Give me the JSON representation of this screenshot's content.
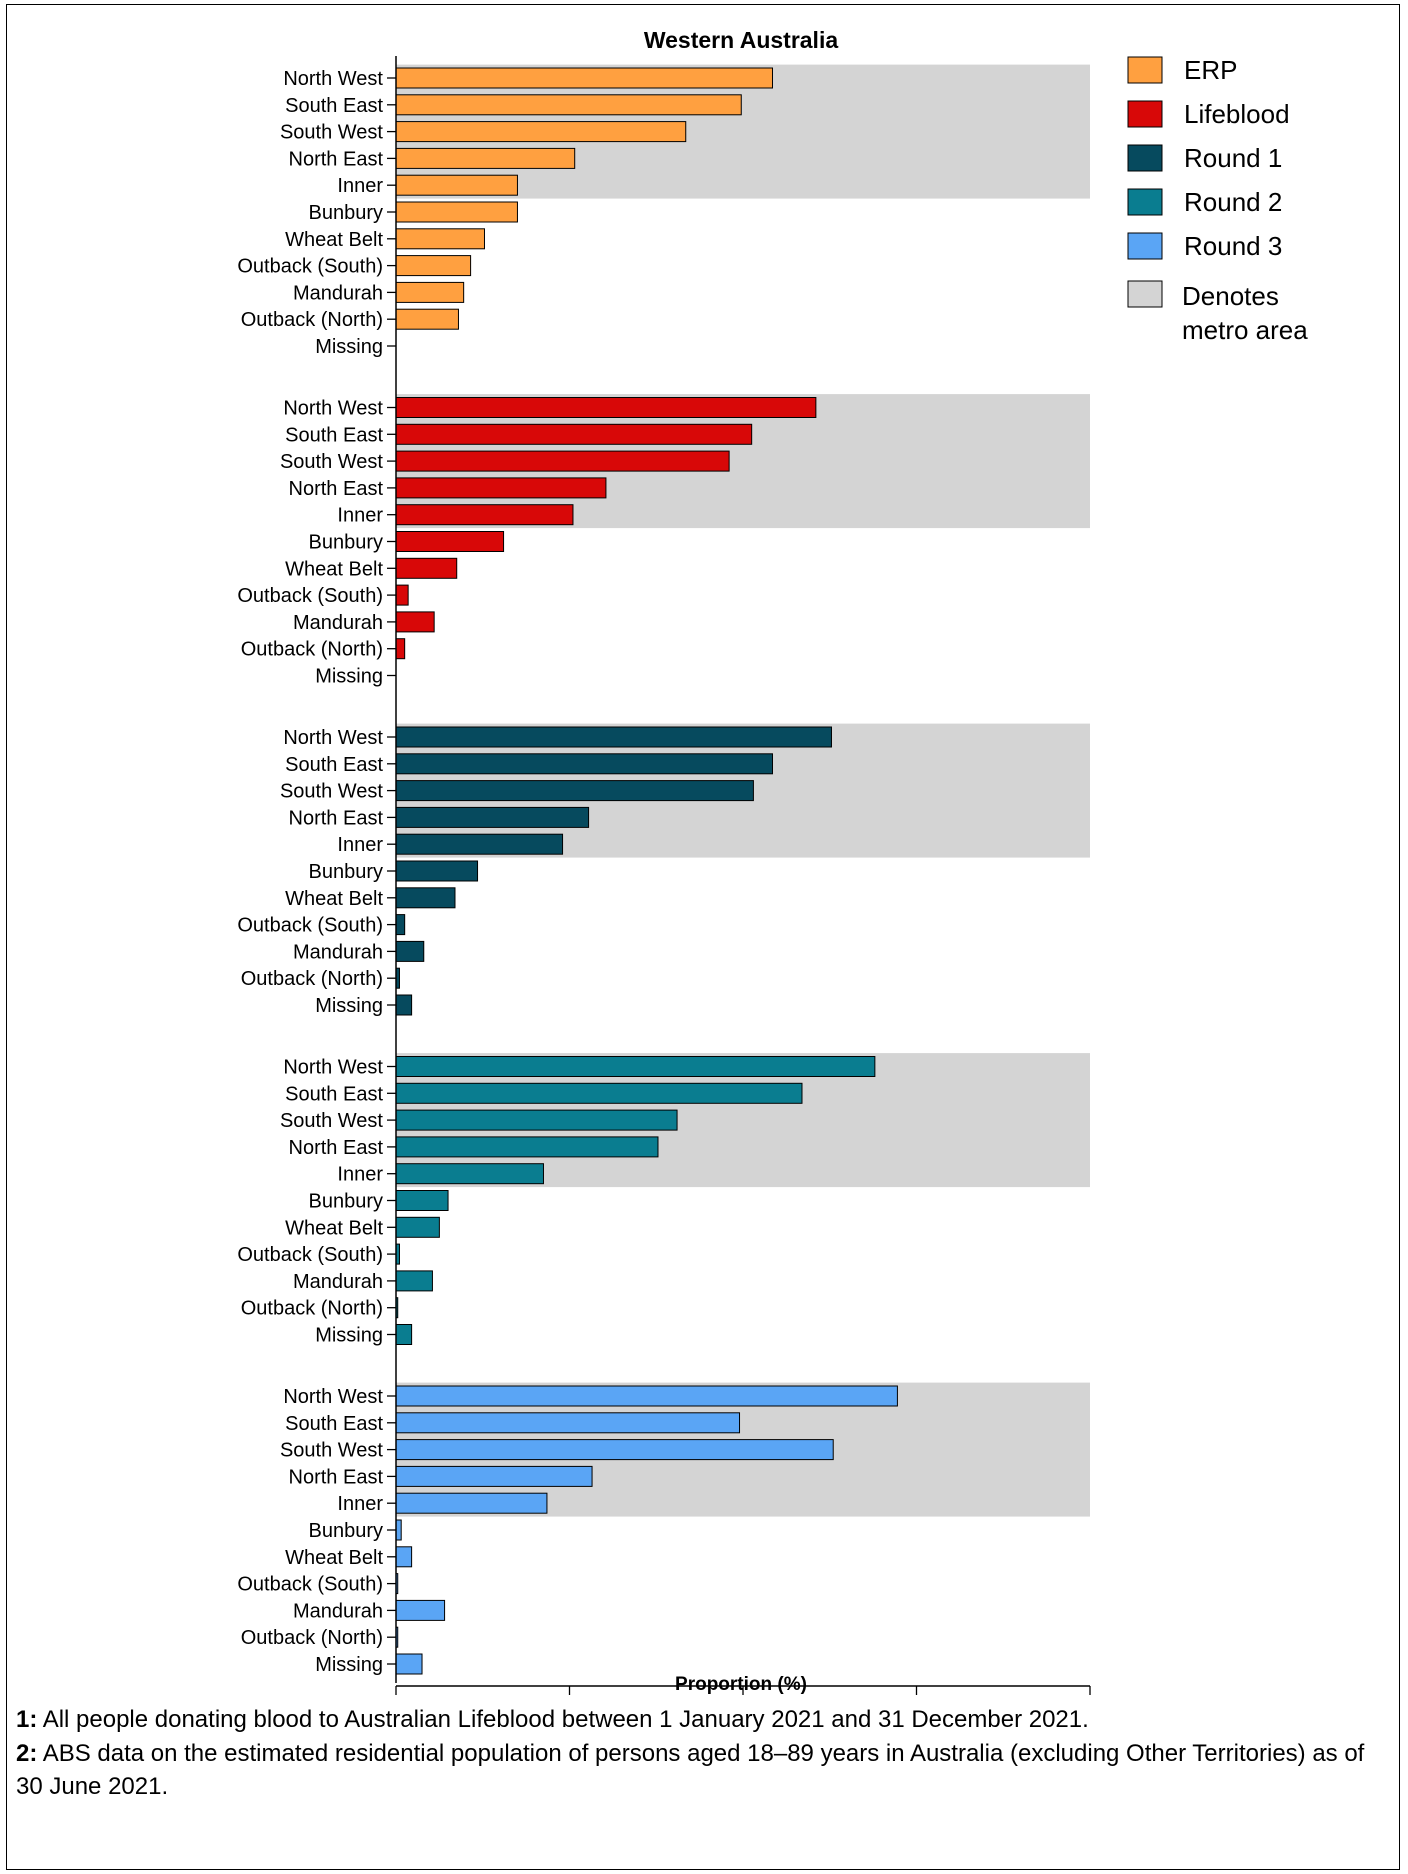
{
  "chart_data": {
    "type": "bar",
    "orientation": "horizontal",
    "title": "Western Australia",
    "xlabel": "Proportion (%)",
    "ylabel": "",
    "xlim": [
      0,
      40
    ],
    "xticks": [
      "0",
      "10",
      "20",
      "30",
      "40"
    ],
    "categories": [
      "North West",
      "South East",
      "South West",
      "North East",
      "Inner",
      "Bunbury",
      "Wheat Belt",
      "Outback (South)",
      "Mandurah",
      "Outback (North)",
      "Missing"
    ],
    "metro_categories": [
      "North West",
      "South East",
      "South West",
      "North East",
      "Inner"
    ],
    "series": [
      {
        "name": "ERP",
        "color": "#FFA040",
        "values": [
          21.7,
          19.9,
          16.7,
          10.3,
          7.0,
          7.0,
          5.1,
          4.3,
          3.9,
          3.6,
          0
        ]
      },
      {
        "name": "Lifeblood",
        "color": "#D80808",
        "values": [
          24.2,
          20.5,
          19.2,
          12.1,
          10.2,
          6.2,
          3.5,
          0.7,
          2.2,
          0.5,
          0
        ]
      },
      {
        "name": "Round 1",
        "color": "#064A5E",
        "values": [
          25.1,
          21.7,
          20.6,
          11.1,
          9.6,
          4.7,
          3.4,
          0.5,
          1.6,
          0.2,
          0.9
        ]
      },
      {
        "name": "Round 2",
        "color": "#0A7D90",
        "values": [
          27.6,
          23.4,
          16.2,
          15.1,
          8.5,
          3.0,
          2.5,
          0.2,
          2.1,
          0.1,
          0.9
        ]
      },
      {
        "name": "Round 3",
        "color": "#5AA5F5",
        "values": [
          28.9,
          19.8,
          25.2,
          11.3,
          8.7,
          0.3,
          0.9,
          0.1,
          2.8,
          0.1,
          1.5
        ]
      }
    ],
    "metro_shading": {
      "label": "Denotes metro area",
      "color": "#D4D4D4"
    },
    "legend_position": "right"
  },
  "footnotes": [
    {
      "number": "1:",
      "text": " All people donating blood to Australian Lifeblood between 1 January 2021 and 31 December 2021."
    },
    {
      "number": "2:",
      "text": " ABS data on the estimated residential population of persons aged 18–89 years in Australia (excluding Other Territories) as of 30 June 2021."
    }
  ]
}
